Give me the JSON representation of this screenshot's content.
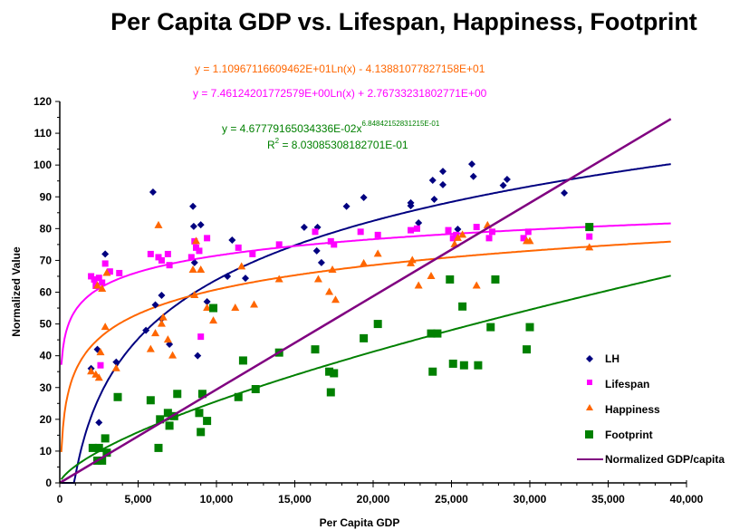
{
  "chart_data": {
    "type": "scatter",
    "title": "Per Capita GDP vs. Lifespan, Happiness, Footprint",
    "xlabel": "Per Capita GDP",
    "ylabel": "Normalized Value",
    "xlim": [
      0,
      40000
    ],
    "ylim": [
      0,
      120
    ],
    "x_ticks": [
      0,
      5000,
      10000,
      15000,
      20000,
      25000,
      30000,
      35000,
      40000
    ],
    "x_tick_labels": [
      "0",
      "5,000",
      "10,000",
      "15,000",
      "20,000",
      "25,000",
      "30,000",
      "35,000",
      "40,000"
    ],
    "y_ticks": [
      0,
      10,
      20,
      30,
      40,
      50,
      60,
      70,
      80,
      90,
      100,
      110,
      120
    ],
    "y_tick_labels": [
      "0",
      "10",
      "20",
      "30",
      "40",
      "50",
      "60",
      "70",
      "80",
      "90",
      "100",
      "110",
      "120"
    ],
    "grid": false,
    "legend_position": "right",
    "annotations": [
      {
        "text": "y = 1.10967116609462E+01Ln(x) - 4.13881077827158E+01",
        "color": "#FF6600"
      },
      {
        "text": "y = 7.46124201772579E+00Ln(x) + 2.76733231802771E+00",
        "color": "#FF00FF"
      },
      {
        "text": "y = 4.67779165034336E-02x",
        "superscript": "6.84842152831215E-01",
        "color": "#008000"
      },
      {
        "text": "R",
        "superscript": "2",
        "suffix": " = 8.03085308182701E-01",
        "color": "#008000"
      }
    ],
    "series": [
      {
        "name": "LH",
        "marker": "diamond",
        "color": "#000080",
        "points": [
          [
            2000,
            36
          ],
          [
            2400,
            42
          ],
          [
            2500,
            19
          ],
          [
            2900,
            72
          ],
          [
            3600,
            38
          ],
          [
            5500,
            48
          ],
          [
            5950,
            91.5
          ],
          [
            6100,
            56
          ],
          [
            6500,
            51.6
          ],
          [
            6500,
            59
          ],
          [
            7000,
            43.6
          ],
          [
            8500,
            87
          ],
          [
            8550,
            80.7
          ],
          [
            8600,
            69.3
          ],
          [
            8800,
            40
          ],
          [
            9000,
            81.2
          ],
          [
            9400,
            57
          ],
          [
            10700,
            65
          ],
          [
            11000,
            76.4
          ],
          [
            11850,
            64.4
          ],
          [
            15600,
            80.4
          ],
          [
            16450,
            80.4
          ],
          [
            16400,
            73
          ],
          [
            16700,
            69.3
          ],
          [
            18300,
            87
          ],
          [
            19400,
            89.8
          ],
          [
            22400,
            88.1
          ],
          [
            22400,
            87.2
          ],
          [
            22900,
            81.8
          ],
          [
            23800,
            95.2
          ],
          [
            23900,
            89.2
          ],
          [
            24450,
            98
          ],
          [
            24450,
            93.8
          ],
          [
            25400,
            79.8
          ],
          [
            26300,
            100.3
          ],
          [
            26400,
            96.4
          ],
          [
            28300,
            93.6
          ],
          [
            28550,
            95.5
          ],
          [
            32200,
            91.2
          ]
        ]
      },
      {
        "name": "Lifespan",
        "marker": "square",
        "color": "#FF00FF",
        "points": [
          [
            2000,
            65
          ],
          [
            2200,
            64
          ],
          [
            2300,
            62
          ],
          [
            2500,
            64.5
          ],
          [
            2600,
            37
          ],
          [
            2700,
            63
          ],
          [
            2900,
            69
          ],
          [
            3200,
            66.5
          ],
          [
            3800,
            66
          ],
          [
            5800,
            72
          ],
          [
            6300,
            71
          ],
          [
            6500,
            70
          ],
          [
            6900,
            72
          ],
          [
            7000,
            68.5
          ],
          [
            8400,
            71
          ],
          [
            8600,
            76
          ],
          [
            8700,
            74
          ],
          [
            8900,
            73
          ],
          [
            9000,
            46
          ],
          [
            9400,
            77
          ],
          [
            11400,
            74
          ],
          [
            12300,
            72
          ],
          [
            14000,
            75
          ],
          [
            16300,
            79
          ],
          [
            17300,
            76
          ],
          [
            17500,
            75
          ],
          [
            19200,
            79
          ],
          [
            20300,
            78
          ],
          [
            22400,
            79.5
          ],
          [
            22800,
            80
          ],
          [
            24800,
            79.5
          ],
          [
            25100,
            77
          ],
          [
            25300,
            78
          ],
          [
            26600,
            80.5
          ],
          [
            27400,
            77
          ],
          [
            27600,
            79
          ],
          [
            29600,
            77
          ],
          [
            29900,
            79
          ],
          [
            33800,
            77.5
          ]
        ]
      },
      {
        "name": "Happiness",
        "marker": "triangle",
        "color": "#FF6600",
        "points": [
          [
            2000,
            35
          ],
          [
            2300,
            34
          ],
          [
            2400,
            62
          ],
          [
            2500,
            33
          ],
          [
            2600,
            41
          ],
          [
            2700,
            61
          ],
          [
            2900,
            49
          ],
          [
            3000,
            66
          ],
          [
            3600,
            36
          ],
          [
            5800,
            42
          ],
          [
            6100,
            47
          ],
          [
            6300,
            81
          ],
          [
            6500,
            50
          ],
          [
            6600,
            52
          ],
          [
            6900,
            45
          ],
          [
            7200,
            40
          ],
          [
            8500,
            67
          ],
          [
            8600,
            59
          ],
          [
            8700,
            76
          ],
          [
            9000,
            67
          ],
          [
            9400,
            55
          ],
          [
            9800,
            51
          ],
          [
            11200,
            55
          ],
          [
            11600,
            68
          ],
          [
            12400,
            56
          ],
          [
            14000,
            64
          ],
          [
            16500,
            64
          ],
          [
            17200,
            60
          ],
          [
            17400,
            67
          ],
          [
            17600,
            57.5
          ],
          [
            19400,
            69
          ],
          [
            20300,
            72
          ],
          [
            22400,
            69
          ],
          [
            22500,
            70
          ],
          [
            22900,
            62
          ],
          [
            23700,
            65
          ],
          [
            25200,
            75
          ],
          [
            25400,
            77
          ],
          [
            25700,
            78
          ],
          [
            26600,
            62
          ],
          [
            27300,
            81
          ],
          [
            29800,
            76
          ],
          [
            30000,
            76
          ],
          [
            33800,
            74
          ]
        ]
      },
      {
        "name": "Footprint",
        "marker": "square-large",
        "color": "#008000",
        "points": [
          [
            2100,
            11
          ],
          [
            2500,
            11
          ],
          [
            2400,
            7
          ],
          [
            2700,
            7
          ],
          [
            2900,
            14
          ],
          [
            3000,
            9.5
          ],
          [
            3700,
            27
          ],
          [
            5800,
            26
          ],
          [
            6300,
            11
          ],
          [
            6400,
            20
          ],
          [
            6900,
            22
          ],
          [
            7000,
            18
          ],
          [
            7300,
            21
          ],
          [
            7500,
            28
          ],
          [
            8900,
            22
          ],
          [
            9000,
            16
          ],
          [
            9100,
            28
          ],
          [
            9400,
            19.5
          ],
          [
            9800,
            55
          ],
          [
            11400,
            27
          ],
          [
            11700,
            38.5
          ],
          [
            12500,
            29.5
          ],
          [
            14000,
            41
          ],
          [
            16300,
            42
          ],
          [
            17200,
            35
          ],
          [
            17300,
            28.5
          ],
          [
            17500,
            34.5
          ],
          [
            19400,
            45.5
          ],
          [
            20300,
            50
          ],
          [
            23700,
            47
          ],
          [
            23800,
            35
          ],
          [
            24100,
            47
          ],
          [
            24900,
            64
          ],
          [
            25100,
            37.5
          ],
          [
            25700,
            55.5
          ],
          [
            25800,
            37
          ],
          [
            26700,
            37
          ],
          [
            27500,
            49
          ],
          [
            27800,
            64
          ],
          [
            29800,
            42
          ],
          [
            30000,
            49
          ],
          [
            33800,
            80.5
          ]
        ]
      },
      {
        "name": "Normalized GDP/capita",
        "type": "line",
        "color": "#800080",
        "points": [
          [
            0,
            0
          ],
          [
            39000,
            114.5
          ]
        ]
      }
    ],
    "trendlines": [
      {
        "series": "LH",
        "type": "log",
        "color": "#000080",
        "description": "LH trend",
        "points": [
          [
            1000,
            0
          ],
          [
            2500,
            22
          ],
          [
            5000,
            47
          ],
          [
            10000,
            70
          ],
          [
            20000,
            85
          ],
          [
            30000,
            92
          ],
          [
            39000,
            96
          ]
        ]
      },
      {
        "series": "Lifespan",
        "type": "log",
        "a": 7.46124201772579,
        "b": 2.76733231802771,
        "color": "#FF00FF"
      },
      {
        "series": "Happiness",
        "type": "log",
        "a": 11.0967116609462,
        "b": -41.3881077827158,
        "color": "#FF6600"
      },
      {
        "series": "Footprint",
        "type": "power",
        "a": 0.0467779165034336,
        "b": 0.684842152831215,
        "color": "#008000"
      }
    ]
  }
}
